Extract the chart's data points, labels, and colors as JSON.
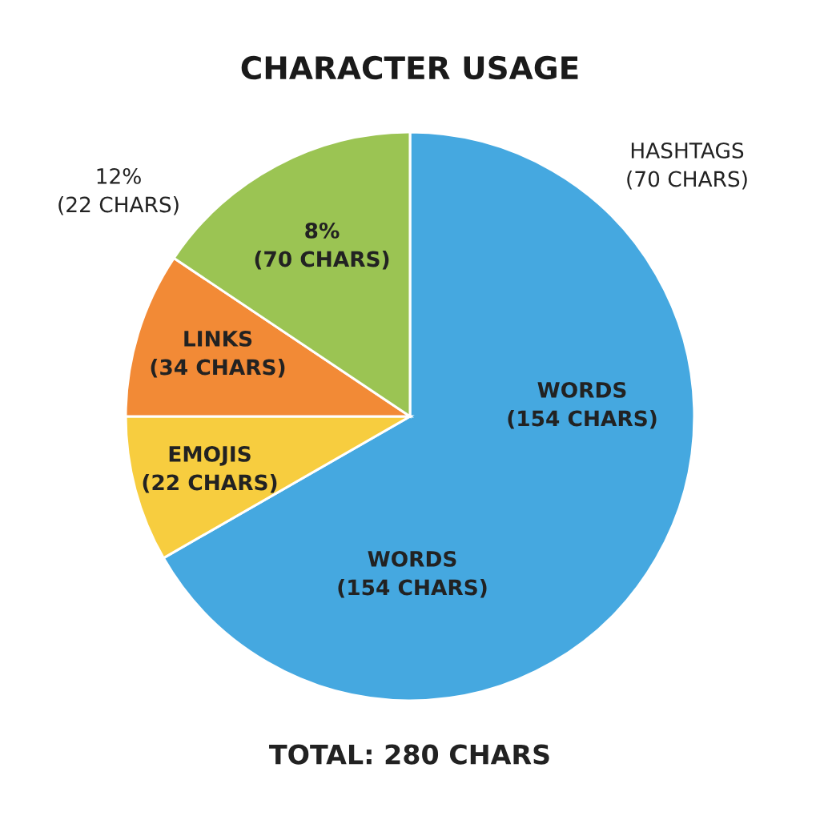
{
  "chart_data": {
    "type": "pie",
    "title": "CHARACTER USAGE",
    "categories": [
      null,
      null,
      null,
      null
    ],
    "values": [
      66.7,
      8.3,
      9.4,
      15.6
    ],
    "colors": [
      "#45a8e0",
      "#f7cd3f",
      "#f28a36",
      "#9bc453"
    ],
    "annotations": [
      "WORDS\n(154 CHARS)",
      "EMOJIS\n(22 CHARS)",
      "LINKS\n(34 CHARS)",
      "8%\n(70 CHARS)",
      "WORDS\n(154 CHARS)",
      "HASHTAGS\n(70 CHARS)",
      "12%\n(22 CHARS)",
      "TOTAL: 280 CHARS"
    ],
    "legend": false
  }
}
